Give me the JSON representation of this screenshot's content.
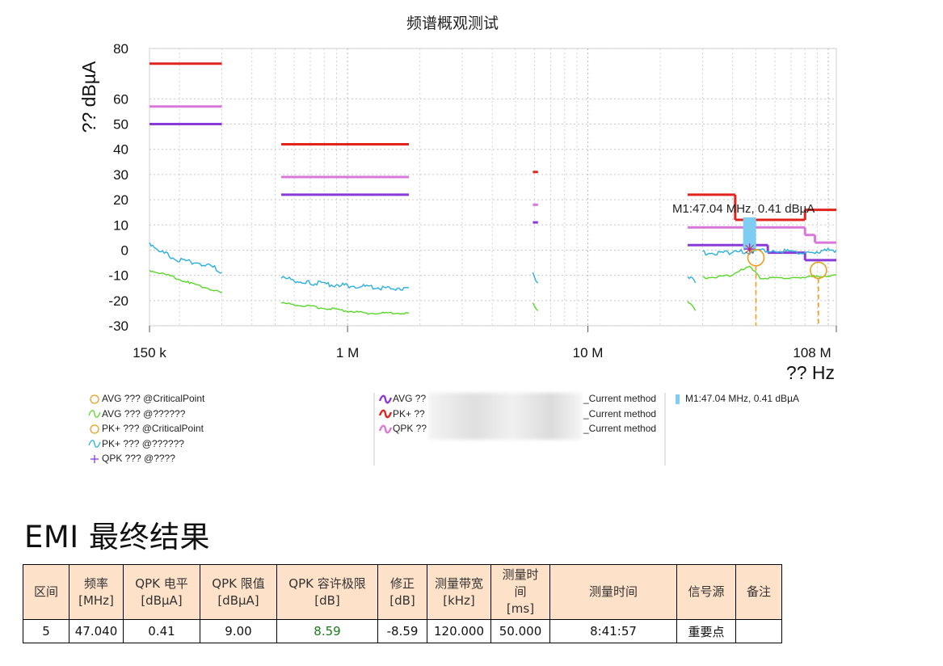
{
  "chart_data": {
    "type": "line",
    "title": "频谱概观测试",
    "ylabel": "?? dBµA",
    "xlabel": "?? Hz",
    "xscale": "log",
    "xlim": [
      150000,
      108000000
    ],
    "ylim": [
      -30,
      80
    ],
    "yticks": [
      80,
      60,
      50,
      40,
      30,
      20,
      10,
      0,
      -10,
      -20,
      -30
    ],
    "xticks": [
      {
        "value": 150000,
        "label": "150 k"
      },
      {
        "value": 1000000,
        "label": "1 M"
      },
      {
        "value": 10000000,
        "label": "10 M"
      },
      {
        "value": 108000000,
        "label": "108 M"
      }
    ],
    "grid": true,
    "limit_lines": [
      {
        "name": "PK+",
        "color": "#e0231c",
        "segments": [
          [
            150000,
            300000,
            74
          ],
          [
            530000,
            1800000,
            42
          ],
          [
            5900000,
            6200000,
            31
          ],
          [
            26000000,
            30000000,
            22
          ],
          [
            30000000,
            41000000,
            22
          ],
          [
            41000000,
            80000000,
            12
          ],
          [
            80000000,
            108000000,
            16
          ]
        ]
      },
      {
        "name": "QPK",
        "color": "#d878d8",
        "segments": [
          [
            150000,
            300000,
            57
          ],
          [
            530000,
            1800000,
            29
          ],
          [
            5900000,
            6200000,
            18
          ],
          [
            26000000,
            30000000,
            9
          ],
          [
            30000000,
            80000000,
            9
          ],
          [
            80000000,
            88000000,
            6
          ],
          [
            88000000,
            108000000,
            3
          ]
        ]
      },
      {
        "name": "AVG",
        "color": "#8a3ad8",
        "segments": [
          [
            150000,
            300000,
            50
          ],
          [
            530000,
            1800000,
            22
          ],
          [
            5900000,
            6200000,
            11
          ],
          [
            26000000,
            30000000,
            2
          ],
          [
            30000000,
            56000000,
            2
          ],
          [
            56000000,
            80000000,
            -1
          ],
          [
            80000000,
            108000000,
            -4
          ]
        ]
      }
    ],
    "measured": [
      {
        "name": "PK+",
        "color": "#2ab0de",
        "segments": [
          [
            [
              150000,
              3
            ],
            [
              170000,
              -1
            ],
            [
              200000,
              -4
            ],
            [
              240000,
              -5
            ],
            [
              280000,
              -7
            ],
            [
              300000,
              -9
            ]
          ],
          [
            [
              530000,
              -11
            ],
            [
              700000,
              -13
            ],
            [
              1000000,
              -14
            ],
            [
              1400000,
              -15
            ],
            [
              1800000,
              -15
            ]
          ],
          [
            [
              5900000,
              -9
            ],
            [
              6200000,
              -13
            ]
          ],
          [
            [
              26000000,
              -10
            ],
            [
              28000000,
              -13
            ]
          ],
          [
            [
              30000000,
              -1
            ],
            [
              40000000,
              -1
            ],
            [
              47040000,
              -0.5
            ],
            [
              60000000,
              0
            ],
            [
              80000000,
              -1
            ],
            [
              108000000,
              0
            ]
          ]
        ]
      },
      {
        "name": "AVG",
        "color": "#5ad82a",
        "segments": [
          [
            [
              150000,
              -8
            ],
            [
              180000,
              -10
            ],
            [
              220000,
              -13
            ],
            [
              260000,
              -15
            ],
            [
              300000,
              -17
            ]
          ],
          [
            [
              530000,
              -21
            ],
            [
              800000,
              -23
            ],
            [
              1200000,
              -25
            ],
            [
              1800000,
              -25
            ]
          ],
          [
            [
              5900000,
              -21
            ],
            [
              6200000,
              -24
            ]
          ],
          [
            [
              26000000,
              -20
            ],
            [
              28000000,
              -24
            ]
          ],
          [
            [
              30000000,
              -11
            ],
            [
              40000000,
              -10
            ],
            [
              47040000,
              -6
            ],
            [
              52000000,
              -11
            ],
            [
              70000000,
              -11
            ],
            [
              108000000,
              -10
            ]
          ]
        ]
      }
    ],
    "markers": [
      {
        "type": "critical-avg",
        "x": 50000000,
        "y": -3
      },
      {
        "type": "critical-avg",
        "x": 91000000,
        "y": -8
      }
    ],
    "qpk_point": {
      "x": 47040000,
      "y": 0.41
    },
    "marker_bar": {
      "x": 47040000,
      "y": 13
    },
    "annotation": "M1:47.04 MHz, 0.41 dBµA"
  },
  "legend": {
    "col1": [
      {
        "icon": "circle-orange",
        "text": "AVG ??? @CriticalPoint"
      },
      {
        "icon": "wave-green",
        "text": "AVG ??? @??????"
      },
      {
        "icon": "circle-orange",
        "text": "PK+ ??? @CriticalPoint"
      },
      {
        "icon": "wave-cyan",
        "text": "PK+ ??? @??????"
      },
      {
        "icon": "plus-purple",
        "text": "QPK ??? @????"
      }
    ],
    "col2": [
      {
        "icon": "wave-purple",
        "prefix": "AVG ??",
        "suffix": "_Current method"
      },
      {
        "icon": "wave-red",
        "prefix": "PK+ ??",
        "suffix": "_Current method"
      },
      {
        "icon": "wave-pink",
        "prefix": "QPK ??",
        "suffix": "_Current method"
      }
    ],
    "col3": [
      {
        "icon": "bar-blue",
        "text": "M1:47.04 MHz, 0.41 dBµA"
      }
    ]
  },
  "colors": {
    "orange": "#e8a020",
    "cyan": "#2ab0de",
    "green": "#5ad82a",
    "purple": "#8a3ad8",
    "red": "#e0231c",
    "pink": "#d878d8",
    "marker": "#7fcdf3"
  },
  "results": {
    "title": "EMI 最终结果",
    "headers": [
      "区间",
      "频率\n[MHz]",
      "QPK 电平\n[dBµA]",
      "QPK 限值\n[dBµA]",
      "QPK 容许极限\n[dB]",
      "修正\n[dB]",
      "测量带宽\n[kHz]",
      "测量时\n间\n[ms]",
      "测量时间",
      "信号源",
      "备注"
    ],
    "rows": [
      [
        "5",
        "47.040",
        "0.41",
        "9.00",
        "8.59",
        "-8.59",
        "120.000",
        "50.000",
        "8:41:57",
        "重要点",
        ""
      ]
    ]
  }
}
